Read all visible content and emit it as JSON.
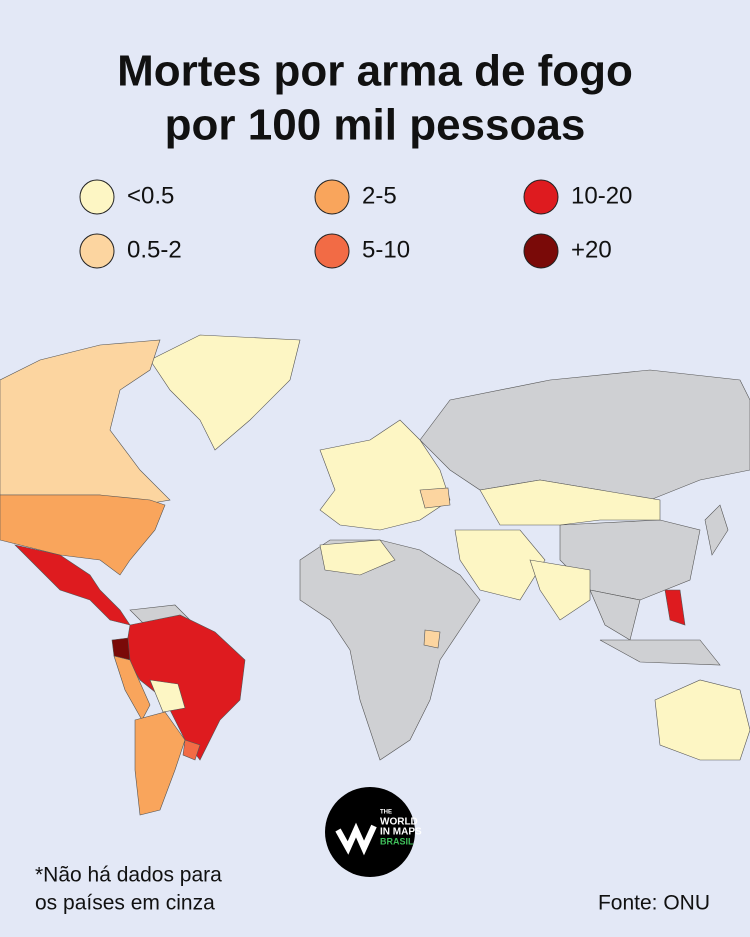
{
  "header": {
    "title": [
      "Mortes por arma de fogo",
      "por 100 mil pessoas"
    ]
  },
  "legend": [
    {
      "label": "<0.5",
      "color": "#fdf6c4"
    },
    {
      "label": "0.5-2",
      "color": "#fcd5a0"
    },
    {
      "label": "2-5",
      "color": "#f9a55c"
    },
    {
      "label": "5-10",
      "color": "#f26b45"
    },
    {
      "label": "10-20",
      "color": "#de1b1f"
    },
    {
      "label": "+20",
      "color": "#7a0a08"
    }
  ],
  "no_data_color": "#cfd0d3",
  "logo": [
    "THE",
    "WORLD",
    "IN MAPS",
    "BRASIL"
  ],
  "footnote": [
    "*Não há dados para",
    "os países em cinza"
  ],
  "source": "Fonte: ONU"
}
